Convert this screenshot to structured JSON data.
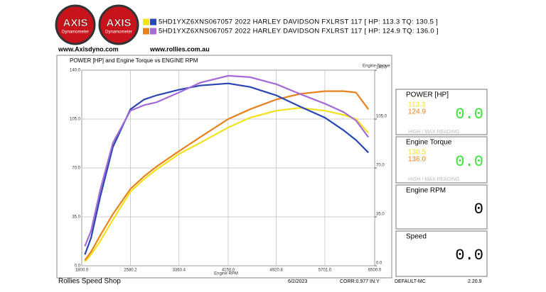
{
  "header": {
    "logos": [
      "AXIS",
      "AXIS"
    ],
    "logo_sub": "Dynamometer",
    "url_left": "www.Axisdyno.com",
    "url_right": "www.rollies.com.au"
  },
  "chart_data": {
    "type": "line",
    "title": "POWER [HP] and Engine Torque vs ENGINE RPM",
    "xlabel": "Engine RPM",
    "y2label": "Engine Torque",
    "legend": [
      {
        "label": "5HD1YXZ6XNS067057 2022 HARLEY DAVIDSON FXLRST 117 [ HP: 113.3 TQ: 130.5 ]",
        "colors": [
          "#f2e21a",
          "#2846b4"
        ]
      },
      {
        "label": "5HD1YXZ6XNS067057 2022 HARLEY DAVIDSON FXLRST 117 [ HP: 124.9 TQ: 136.0 ]",
        "colors": [
          "#e8821e",
          "#a46ad8"
        ]
      }
    ],
    "x": [
      1850,
      1950,
      2100,
      2300,
      2580,
      2800,
      3000,
      3360,
      3700,
      4150,
      4500,
      4920,
      5300,
      5701,
      6000,
      6200,
      6400
    ],
    "series": [
      {
        "color": "#f2e21a",
        "values": [
          3,
          8,
          18,
          33,
          53,
          62,
          69,
          80,
          88,
          99,
          106,
          111,
          113,
          111,
          108,
          105,
          95
        ]
      },
      {
        "color": "#e8821e",
        "values": [
          4,
          10,
          22,
          37,
          55,
          64,
          71,
          82,
          92,
          105,
          112,
          119,
          123,
          125,
          125,
          124,
          112
        ]
      },
      {
        "color": "#2846b4",
        "axis": "y2",
        "values": [
          8,
          20,
          50,
          85,
          112,
          119,
          122,
          126,
          129,
          130.5,
          128,
          122,
          114,
          106,
          97,
          90,
          81
        ]
      },
      {
        "color": "#a46ad8",
        "axis": "y2",
        "values": [
          14,
          25,
          55,
          88,
          111,
          115,
          117,
          124,
          131,
          136,
          135,
          130,
          123,
          116,
          110,
          104,
          92
        ]
      }
    ],
    "xlim": [
      1800,
      6500
    ],
    "xticks": [
      {
        "value": 1800,
        "label": "1800.0"
      },
      {
        "value": 2580.2,
        "label": "2580.2"
      },
      {
        "value": 3360.4,
        "label": "3360.4"
      },
      {
        "value": 4150,
        "label": "4150.0"
      },
      {
        "value": 4920.8,
        "label": "4920.8"
      },
      {
        "value": 5701,
        "label": "5701.0"
      },
      {
        "value": 6500,
        "label": "6500.0"
      }
    ],
    "ylim": [
      0,
      140
    ],
    "yticks": [
      {
        "value": 0,
        "label": "0.0"
      },
      {
        "value": 35,
        "label": "35.0"
      },
      {
        "value": 70,
        "label": "70.0"
      },
      {
        "value": 105,
        "label": "105.0"
      },
      {
        "value": 140,
        "label": "140.0"
      }
    ],
    "y2lim": [
      0,
      140
    ],
    "y2ticks": [
      {
        "value": 0,
        "label": "0.0"
      },
      {
        "value": 35,
        "label": "35.0"
      },
      {
        "value": 70,
        "label": "70.0"
      },
      {
        "value": 105,
        "label": "105.0"
      },
      {
        "value": 140,
        "label": "140.0"
      }
    ],
    "grid": true
  },
  "panels": [
    {
      "title": "POWER [HP]",
      "readings": [
        "113.3",
        "124.9"
      ],
      "value": "0.0",
      "note": "HIGH / MAX READING"
    },
    {
      "title": "Engine Torque",
      "readings": [
        "130.5",
        "136.0"
      ],
      "value": "0.0",
      "note": "HIGH / MAX READING"
    },
    {
      "title": "Engine RPM",
      "value": "0"
    },
    {
      "title": "Speed",
      "value": "0.0"
    }
  ],
  "footer": {
    "shop": "Rollies Speed Shop",
    "date": "6/2/2023",
    "corr": "CORR:0.977 IN:Y",
    "profile": "DEFAULT-MC",
    "version": "2.20.9"
  }
}
